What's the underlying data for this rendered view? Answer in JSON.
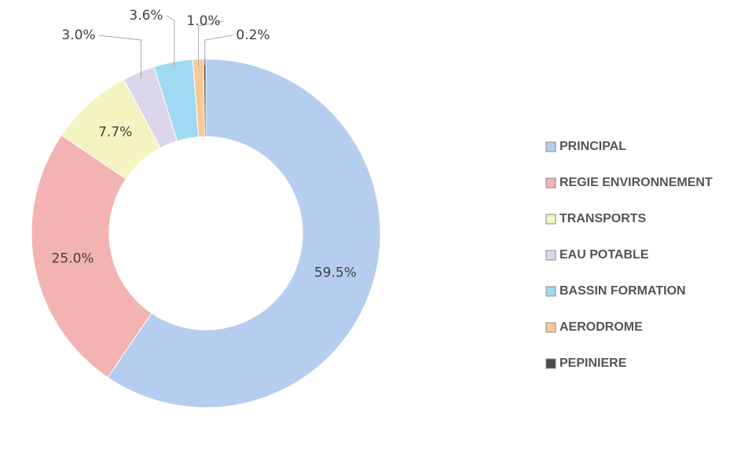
{
  "chart_data": {
    "type": "donut",
    "categories": [
      "PRINCIPAL",
      "REGIE ENVIRONNEMENT",
      "TRANSPORTS",
      "EAU POTABLE",
      "BASSIN FORMATION",
      "AERODROME",
      "PEPINIERE"
    ],
    "values": [
      59.5,
      25.0,
      7.7,
      3.0,
      3.6,
      1.0,
      0.2
    ],
    "value_labels": [
      "59.5%",
      "25.0%",
      "7.7%",
      "3.0%",
      "3.6%",
      "1.0%",
      "0.2%"
    ],
    "colors": [
      "#b5cdef",
      "#f4b3b3",
      "#f4f4c0",
      "#dcd6ea",
      "#9fd9f2",
      "#f8c996",
      "#4a4a4a"
    ],
    "legend": "right"
  }
}
